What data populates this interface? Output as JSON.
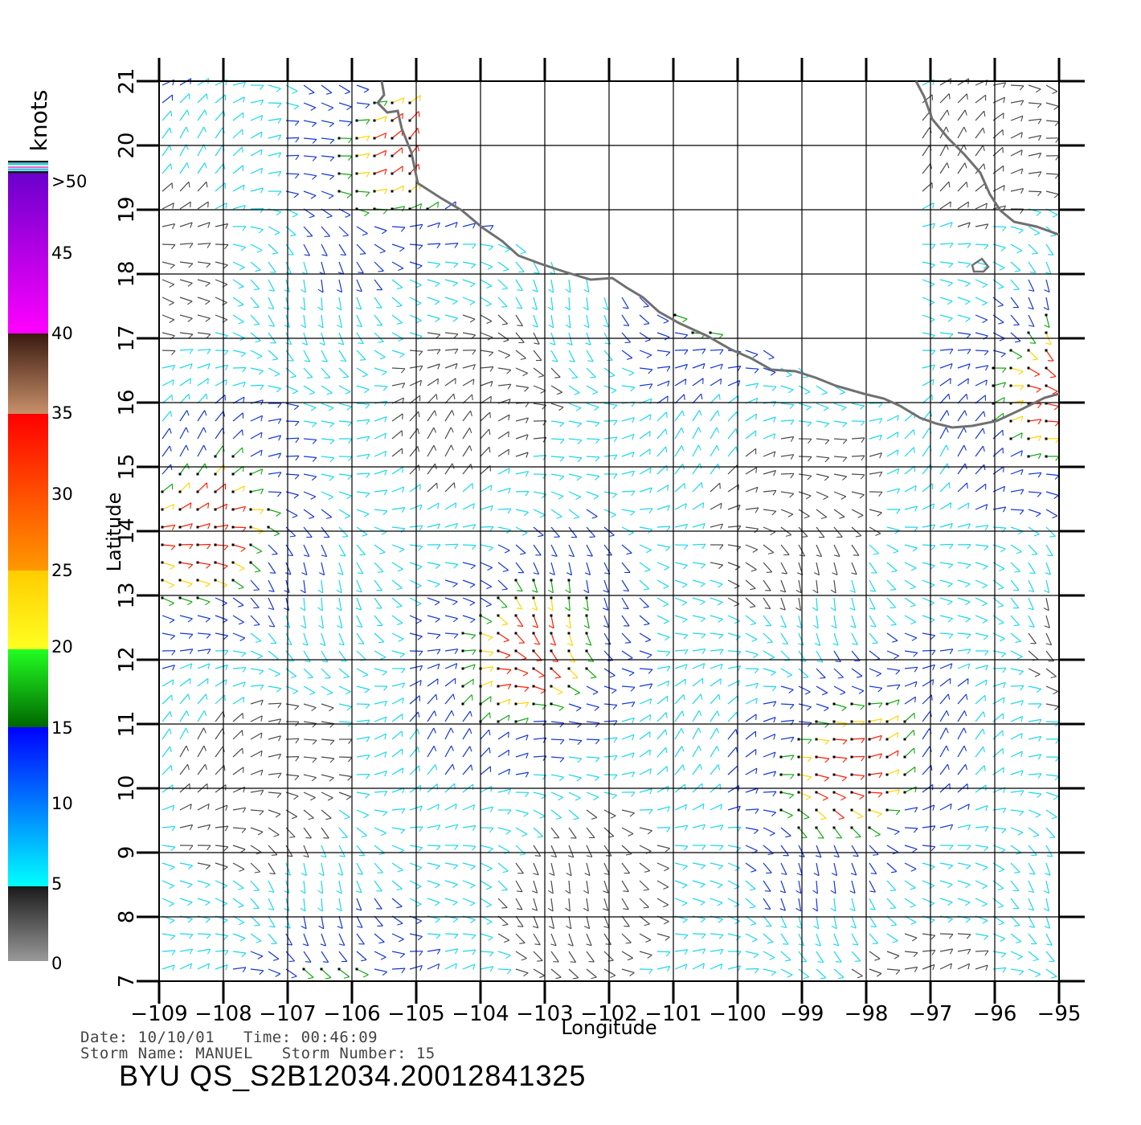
{
  "colorbar": {
    "title": "knots",
    "labels": [
      ">50",
      "45",
      "40",
      "35",
      "30",
      "25",
      "20",
      "15",
      "10",
      "5",
      "0"
    ]
  },
  "axes": {
    "xlabel": "Longitude",
    "ylabel": "Latitude",
    "lon_ticks": [
      "−109",
      "−108",
      "−107",
      "−106",
      "−105",
      "−104",
      "−103",
      "−102",
      "−101",
      "−100",
      "−99",
      "−98",
      "−97",
      "−96",
      "−95"
    ],
    "lat_ticks": [
      "7",
      "8",
      "9",
      "10",
      "11",
      "12",
      "13",
      "14",
      "15",
      "16",
      "17",
      "18",
      "19",
      "20",
      "21"
    ],
    "lon_range": [
      -109,
      -95
    ],
    "lat_range": [
      7,
      21
    ]
  },
  "meta": {
    "date_line": "Date: 10/10/01   Time: 00:46:09",
    "storm_line": "Storm Name: MANUEL   Storm Number: 15",
    "product_id": "BYU QS_S2B12034.20012841325"
  },
  "colors": {
    "background": "#ffffff",
    "grid": "#000000",
    "coastline": "#707070",
    "scale_0_5": "#4a4a4a",
    "scale_5_10": "#19d8ea",
    "scale_10_15": "#1436d8",
    "scale_15_20": "#11a811",
    "scale_20_25": "#ffd400",
    "scale_25_30": "#ff7a00",
    "scale_30_35": "#ff1a00",
    "scale_35_40": "#8a5535",
    "scale_40_50": "#ff00ff",
    "scale_over_50": "#6a00cc"
  }
}
